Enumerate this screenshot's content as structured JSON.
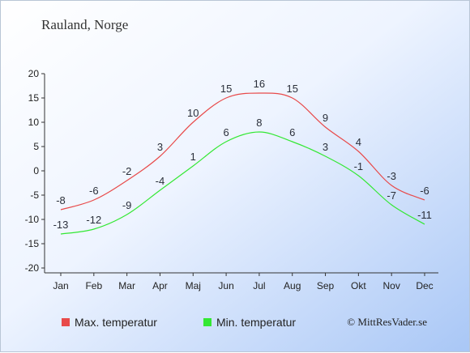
{
  "location": "Rauland, Norge",
  "credit": "© MittResVader.se",
  "legend": {
    "max_label": "Max. temperatur",
    "min_label": "Min. temperatur",
    "max_color": "#e84a4a",
    "min_color": "#33e833"
  },
  "chart_data": {
    "type": "line",
    "categories": [
      "Jan",
      "Feb",
      "Mar",
      "Apr",
      "Maj",
      "Jun",
      "Jul",
      "Aug",
      "Sep",
      "Okt",
      "Nov",
      "Dec"
    ],
    "series": [
      {
        "name": "Max. temperatur",
        "color": "#e84a4a",
        "values": [
          -8,
          -6,
          -2,
          3,
          10,
          15,
          16,
          15,
          9,
          4,
          -3,
          -6
        ]
      },
      {
        "name": "Min. temperatur",
        "color": "#33e833",
        "values": [
          -13,
          -12,
          -9,
          -4,
          1,
          6,
          8,
          6,
          3,
          -1,
          -7,
          -11
        ]
      }
    ],
    "ylim": [
      -20,
      20
    ],
    "yticks": [
      -20,
      -15,
      -10,
      -5,
      0,
      5,
      10,
      15,
      20
    ],
    "grid": false,
    "legend_position": "bottom"
  }
}
